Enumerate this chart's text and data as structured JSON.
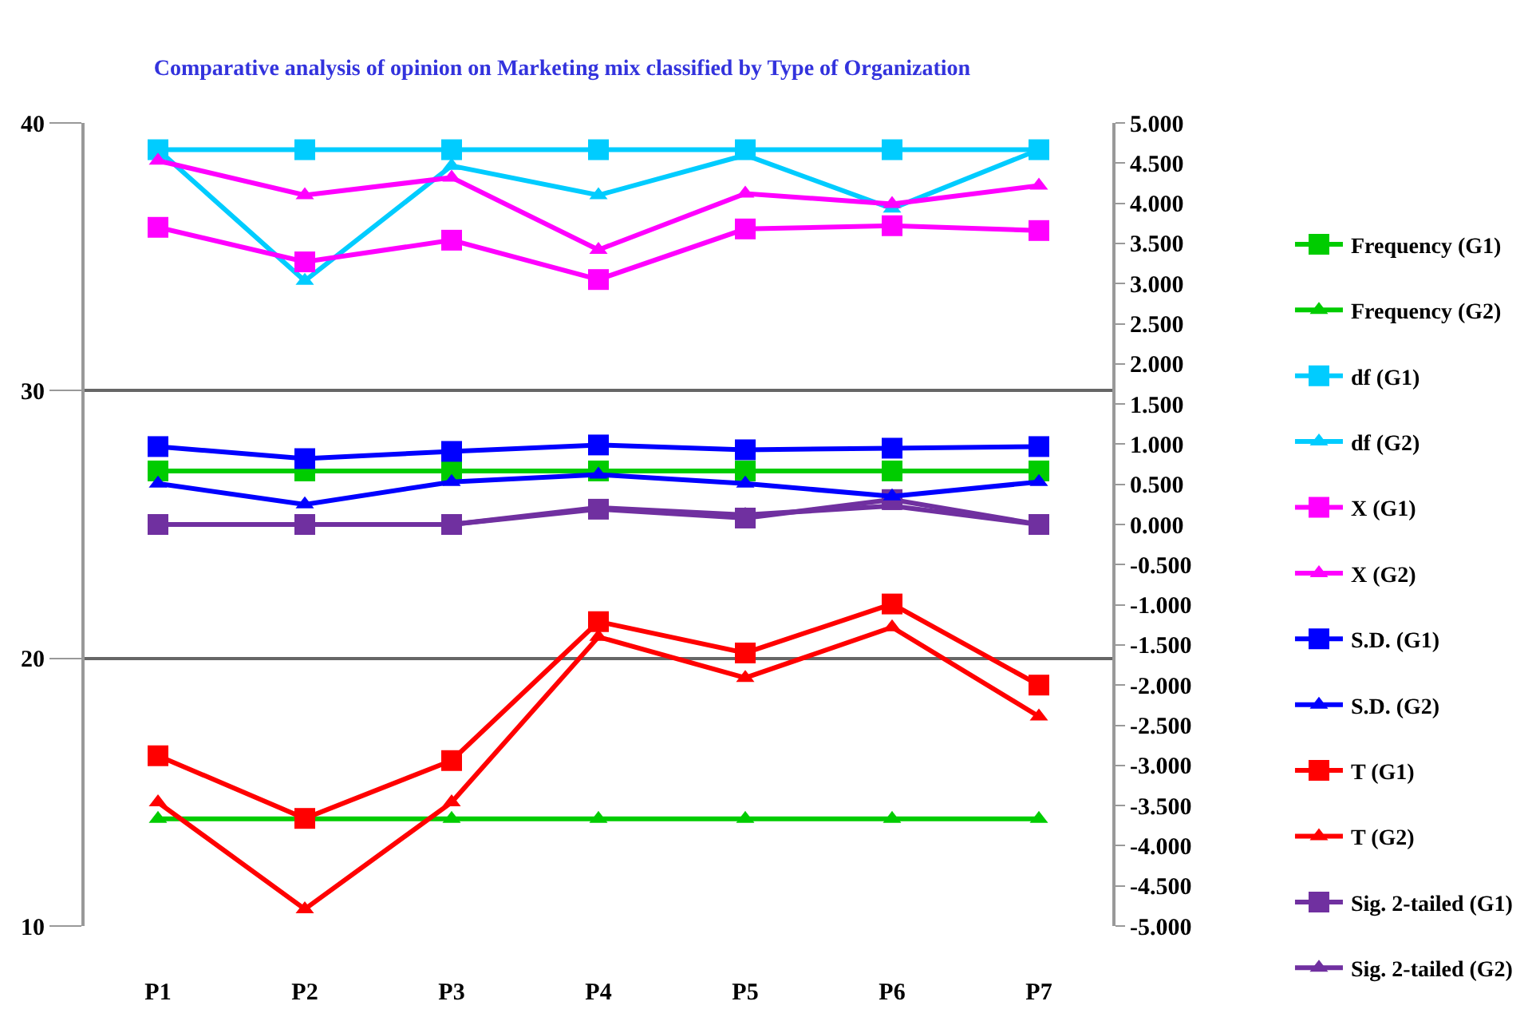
{
  "chart_data": {
    "type": "line",
    "title": "Comparative analysis of opinion on Marketing mix classified by Type of Organization",
    "categories": [
      "P1",
      "P2",
      "P3",
      "P4",
      "P5",
      "P6",
      "P7"
    ],
    "series": [
      {
        "name": "Frequency (G1)",
        "color": "#00cc00",
        "marker": "square",
        "values": [
          27,
          27,
          27,
          27,
          27,
          27,
          27
        ]
      },
      {
        "name": "Frequency (G2)",
        "color": "#00cc00",
        "marker": "triangle",
        "values": [
          14,
          null,
          14,
          14,
          14,
          14,
          14
        ]
      },
      {
        "name": "df (G1)",
        "color": "#00ccff",
        "marker": "square",
        "values": [
          39,
          39,
          39,
          39,
          39,
          39,
          39
        ]
      },
      {
        "name": "df (G2)",
        "color": "#00ccff",
        "marker": "triangle",
        "values": [
          39,
          34.1,
          38.4,
          37.3,
          38.8,
          36.8,
          39
        ]
      },
      {
        "name": "X (G1)",
        "color": "#ff00ff",
        "marker": "square",
        "axis": "y2",
        "values": [
          3.7,
          3.27,
          3.54,
          3.05,
          3.68,
          3.72,
          3.66
        ]
      },
      {
        "name": "X (G2)",
        "color": "#ff00ff",
        "marker": "triangle",
        "axis": "y2",
        "values": [
          4.53,
          4.1,
          4.32,
          3.42,
          4.12,
          3.99,
          4.22
        ]
      },
      {
        "name": "S.D. (G1)",
        "color": "#0000ff",
        "marker": "square",
        "axis": "y2",
        "values": [
          0.97,
          0.82,
          0.91,
          0.99,
          0.93,
          0.95,
          0.97
        ]
      },
      {
        "name": "S.D. (G2)",
        "color": "#0000ff",
        "marker": "triangle",
        "axis": "y2",
        "values": [
          0.51,
          0.25,
          0.53,
          0.62,
          0.51,
          0.35,
          0.53
        ]
      },
      {
        "name": "T (G1)",
        "color": "#ff0000",
        "marker": "square",
        "axis": "y2",
        "values": [
          -2.88,
          -3.66,
          -2.94,
          -1.21,
          -1.6,
          -0.99,
          -2.0
        ]
      },
      {
        "name": "T (G2)",
        "color": "#ff0000",
        "marker": "triangle",
        "axis": "y2",
        "values": [
          -3.46,
          -4.79,
          -3.46,
          -1.4,
          -1.91,
          -1.28,
          -2.39
        ]
      },
      {
        "name": "Sig. 2-tailed (G1)",
        "color": "#7030a0",
        "marker": "square",
        "axis": "y2",
        "values": [
          0.0,
          0.0,
          0.0,
          0.19,
          0.08,
          0.31,
          0.0
        ]
      },
      {
        "name": "Sig. 2-tailed (G2)",
        "color": "#7030a0",
        "marker": "triangle",
        "axis": "y2",
        "values": [
          0.0,
          0.0,
          0.0,
          0.21,
          0.12,
          0.23,
          0.0
        ]
      }
    ],
    "ylim": [
      10,
      40
    ],
    "yticks": [
      10,
      20,
      30,
      40
    ],
    "y2lim": [
      -5,
      5
    ],
    "y2ticks": [
      {
        "value": -5,
        "label": "-5.000"
      },
      {
        "value": -4.5,
        "label": "-4.500"
      },
      {
        "value": -4,
        "label": "-4.000"
      },
      {
        "value": -3.5,
        "label": "-3.500"
      },
      {
        "value": -3,
        "label": "-3.000"
      },
      {
        "value": -2.5,
        "label": "-2.500"
      },
      {
        "value": -2,
        "label": "-2.000"
      },
      {
        "value": -1.5,
        "label": "-1.500"
      },
      {
        "value": -1,
        "label": "-1.000"
      },
      {
        "value": -0.5,
        "label": "-0.500"
      },
      {
        "value": 0,
        "label": "0.000"
      },
      {
        "value": 0.5,
        "label": "0.500"
      },
      {
        "value": 1,
        "label": "1.000"
      },
      {
        "value": 1.5,
        "label": "1.500"
      },
      {
        "value": 2,
        "label": "2.000"
      },
      {
        "value": 2.5,
        "label": "2.500"
      },
      {
        "value": 3,
        "label": "3.000"
      },
      {
        "value": 3.5,
        "label": "3.500"
      },
      {
        "value": 4,
        "label": "4.000"
      },
      {
        "value": 4.5,
        "label": "4.500"
      },
      {
        "value": 5,
        "label": "5.000"
      }
    ],
    "grid": "y",
    "legend": "right",
    "line_style": "solid"
  }
}
